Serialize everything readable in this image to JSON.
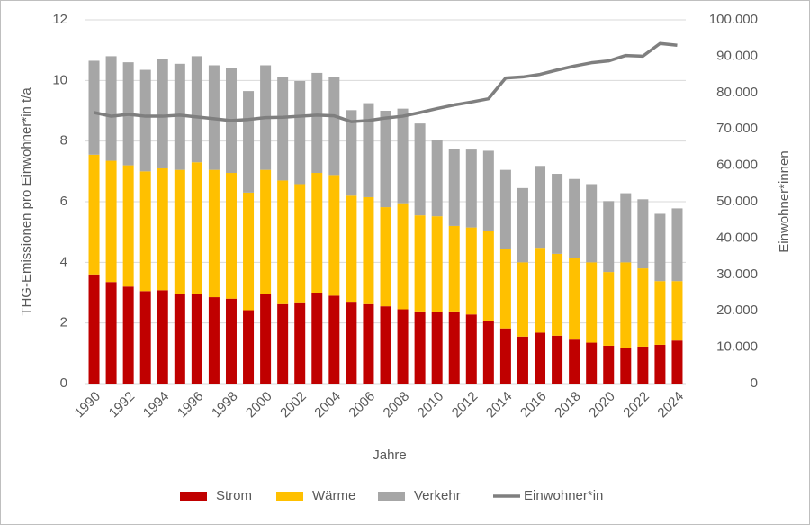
{
  "chart_data": {
    "type": "bar",
    "stacked": true,
    "grid": true,
    "legend": "bottom",
    "xlabel": "Jahre",
    "ylabel": "THG-Emissionen pro Einwohner*in t/a",
    "y2label": "Einwohner*innen",
    "categories": [
      "1990",
      null,
      "1992",
      null,
      "1994",
      null,
      "1996",
      null,
      "1998",
      null,
      "2000",
      null,
      "2002",
      null,
      "2004",
      null,
      "2006",
      null,
      "2008",
      null,
      "2010",
      null,
      "2012",
      null,
      "2014",
      null,
      "2016",
      null,
      "2018",
      null,
      "2020",
      null,
      "2022",
      null,
      "2024"
    ],
    "ylim": [
      0,
      12
    ],
    "yticks": [
      0,
      2,
      4,
      6,
      8,
      10,
      12
    ],
    "y2lim": [
      0,
      100000
    ],
    "y2ticks": [
      0,
      {
        "value": 10000,
        "label": "10.000"
      },
      {
        "value": 20000,
        "label": "20.000"
      },
      {
        "value": 30000,
        "label": "30.000"
      },
      {
        "value": 40000,
        "label": "40.000"
      },
      {
        "value": 50000,
        "label": "50.000"
      },
      {
        "value": 60000,
        "label": "60.000"
      },
      {
        "value": 70000,
        "label": "70.000"
      },
      {
        "value": 80000,
        "label": "80.000"
      },
      {
        "value": 90000,
        "label": "90.000"
      },
      {
        "value": 100000,
        "label": "100.000"
      }
    ],
    "series": [
      {
        "name": "Strom",
        "color": "#c00000",
        "values": [
          3.6,
          3.35,
          3.2,
          3.05,
          3.08,
          2.95,
          2.95,
          2.85,
          2.8,
          2.42,
          2.97,
          2.62,
          2.68,
          3.0,
          2.9,
          2.7,
          2.62,
          2.55,
          2.45,
          2.38,
          2.35,
          2.38,
          2.28,
          2.08,
          1.82,
          1.55,
          1.68,
          1.58,
          1.45,
          1.35,
          1.25,
          1.18,
          1.22,
          1.28,
          1.42
        ]
      },
      {
        "name": "Wärme",
        "color": "#ffc000",
        "values": [
          3.95,
          4.0,
          4.0,
          3.95,
          4.02,
          4.1,
          4.35,
          4.2,
          4.15,
          3.88,
          4.08,
          4.08,
          3.9,
          3.95,
          3.98,
          3.5,
          3.53,
          3.27,
          3.5,
          3.17,
          3.17,
          2.82,
          2.87,
          2.97,
          2.63,
          2.45,
          2.8,
          2.7,
          2.7,
          2.65,
          2.43,
          2.82,
          2.58,
          2.1,
          1.96
        ]
      },
      {
        "name": "Verkehr",
        "color": "#a6a6a6",
        "values": [
          3.1,
          3.45,
          3.4,
          3.35,
          3.6,
          3.5,
          3.5,
          3.45,
          3.45,
          3.35,
          3.45,
          3.4,
          3.4,
          3.3,
          3.24,
          2.82,
          3.1,
          3.18,
          3.12,
          3.03,
          2.5,
          2.55,
          2.57,
          2.63,
          2.6,
          2.45,
          2.7,
          2.64,
          2.6,
          2.58,
          2.34,
          2.28,
          2.28,
          2.22,
          2.4
        ]
      },
      {
        "name": "Einwohner*in",
        "color": "#7f7f7f",
        "type": "line",
        "axis": "y2",
        "values": [
          74500,
          73500,
          74000,
          73500,
          73500,
          73800,
          73300,
          72800,
          72300,
          72600,
          73100,
          73200,
          73500,
          73800,
          73600,
          72000,
          72300,
          73000,
          73500,
          74500,
          75600,
          76600,
          77400,
          78300,
          84000,
          84300,
          85000,
          86200,
          87300,
          88200,
          88700,
          90200,
          90000,
          93500,
          93000
        ]
      }
    ]
  }
}
